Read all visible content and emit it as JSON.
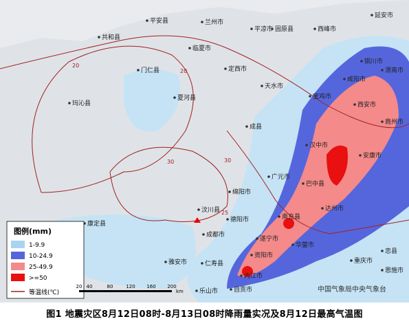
{
  "map": {
    "cities": [
      "延安市",
      "共和县",
      "平安县",
      "兰州市",
      "平凉市",
      "固原县",
      "西峰市",
      "临夏市",
      "铜川市",
      "门仁县",
      "定西市",
      "天水市",
      "渭南市",
      "咸阳市",
      "宝鸡市",
      "西安市",
      "玛沁县",
      "夏河县",
      "成县",
      "商州市",
      "汉中市",
      "安康市",
      "广元市",
      "巴中县",
      "绵阳市",
      "汶川县",
      "达州市",
      "德阳市",
      "南充县",
      "康定县",
      "成都市",
      "遂宁市",
      "华蓥市",
      "雅安市",
      "仁寿县",
      "资阳市",
      "重庆市",
      "忠县",
      "内江市",
      "乐山市",
      "自贡市",
      "恩施市"
    ],
    "contour_labels": [
      "20",
      "20",
      "30",
      "30",
      "25"
    ]
  },
  "legend": {
    "title": "图例(mm)",
    "items": [
      "1-9.9",
      "10-24.9",
      "25-49.9",
      ">=50"
    ],
    "isotherm": "等温线(℃)"
  },
  "scale": {
    "ticks": [
      "20",
      "40",
      "80",
      "120",
      "160",
      "200"
    ],
    "unit": "km"
  },
  "credit": "中国气象局中央气象台",
  "caption": "图1  地震灾区8月12日08时-8月13日08时降雨量实况及8月12日最高气温图"
}
